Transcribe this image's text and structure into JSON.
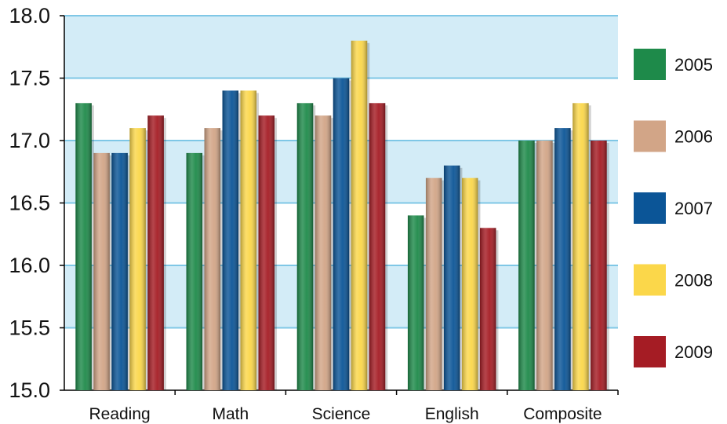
{
  "chart_data": {
    "type": "bar",
    "title": "",
    "xlabel": "",
    "ylabel": "",
    "ylim": [
      15.0,
      18.0
    ],
    "yticks": [
      "15.0",
      "15.5",
      "16.0",
      "16.5",
      "17.0",
      "17.5",
      "18.0"
    ],
    "grid": true,
    "legend_position": "right",
    "categories": [
      "Reading",
      "Math",
      "Science",
      "English",
      "Composite"
    ],
    "series": [
      {
        "name": "2005",
        "color": "#1e8a4a",
        "values": [
          17.3,
          16.9,
          17.3,
          16.4,
          17.0
        ]
      },
      {
        "name": "2006",
        "color": "#d2a587",
        "values": [
          16.9,
          17.1,
          17.2,
          16.7,
          17.0
        ]
      },
      {
        "name": "2007",
        "color": "#0b5597",
        "values": [
          16.9,
          17.4,
          17.5,
          16.8,
          17.1
        ]
      },
      {
        "name": "2008",
        "color": "#fbd74a",
        "values": [
          17.1,
          17.4,
          17.8,
          16.7,
          17.3
        ]
      },
      {
        "name": "2009",
        "color": "#a51c24",
        "values": [
          17.2,
          17.2,
          17.3,
          16.3,
          17.0
        ]
      }
    ],
    "band_color": "#d3ecf7",
    "grid_color": "#7fc7e6"
  }
}
